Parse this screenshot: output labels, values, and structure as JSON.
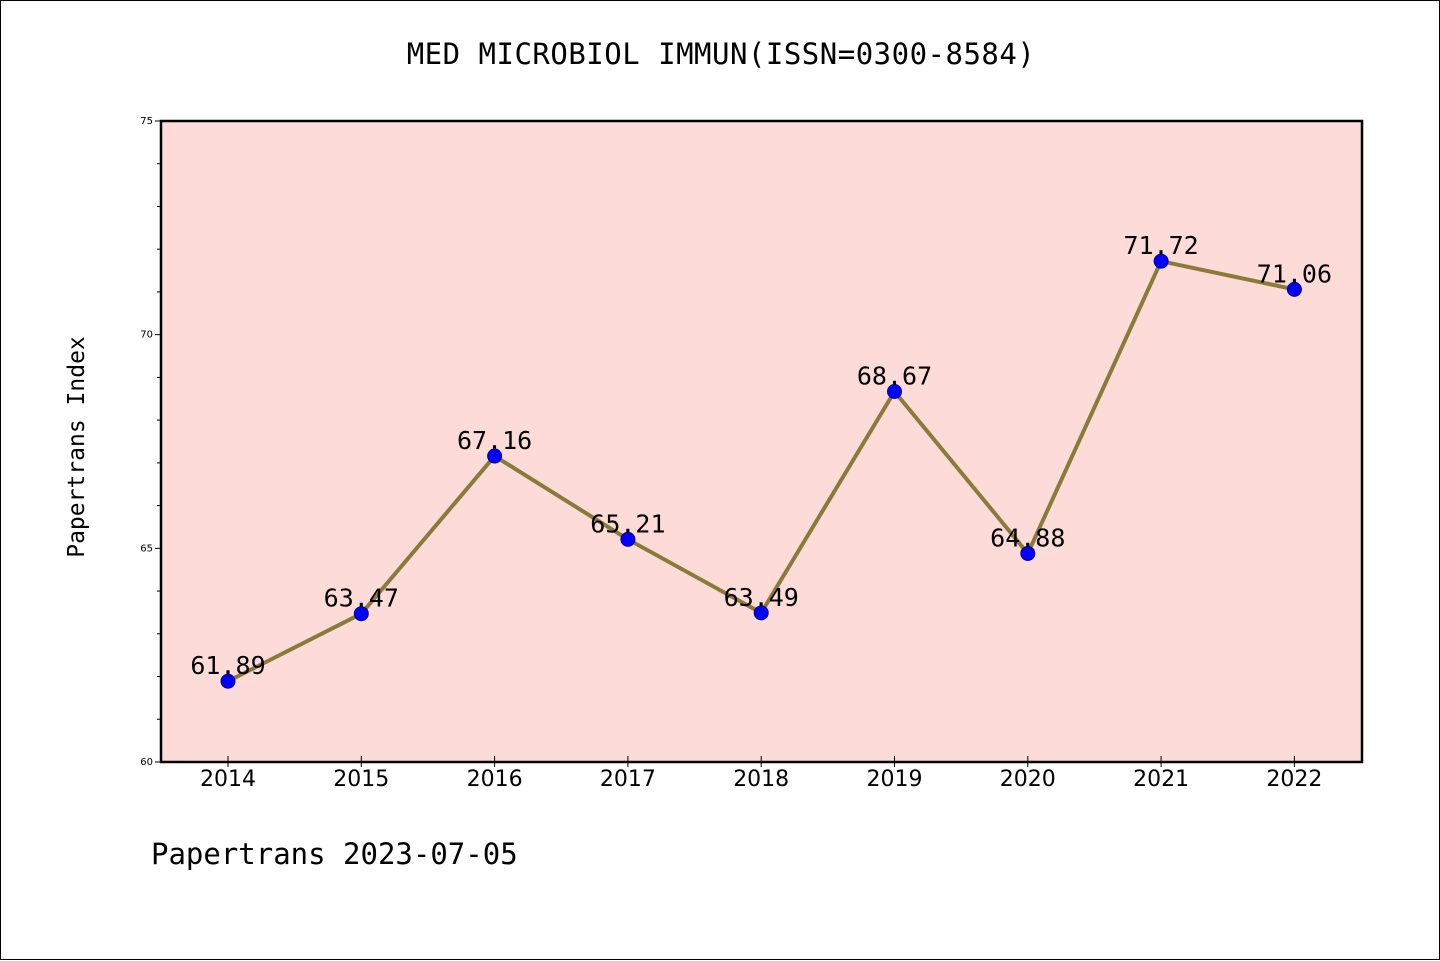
{
  "chart_data": {
    "type": "line",
    "title": "MED MICROBIOL IMMUN(ISSN=0300-8584)",
    "ylabel": "Papertrans Index",
    "xlabel": "",
    "categories": [
      "2014",
      "2015",
      "2016",
      "2017",
      "2018",
      "2019",
      "2020",
      "2021",
      "2022"
    ],
    "values": [
      61.89,
      63.47,
      67.16,
      65.21,
      63.49,
      68.67,
      64.88,
      71.72,
      71.06
    ],
    "data_labels": [
      "61.89",
      "63.47",
      "67.16",
      "65.21",
      "63.49",
      "68.67",
      "64.88",
      "71.72",
      "71.06"
    ],
    "ylim": [
      60,
      75
    ],
    "y_major_ticks": [
      60,
      65,
      70,
      75
    ],
    "y_tick_labels": [
      "60",
      "65",
      "70",
      "75"
    ],
    "grid": false,
    "colors": {
      "plot_background": "#fddbd8",
      "line": "#8b7b3a",
      "marker": "#0000ff"
    }
  },
  "footer": {
    "text": "Papertrans 2023-07-05"
  }
}
